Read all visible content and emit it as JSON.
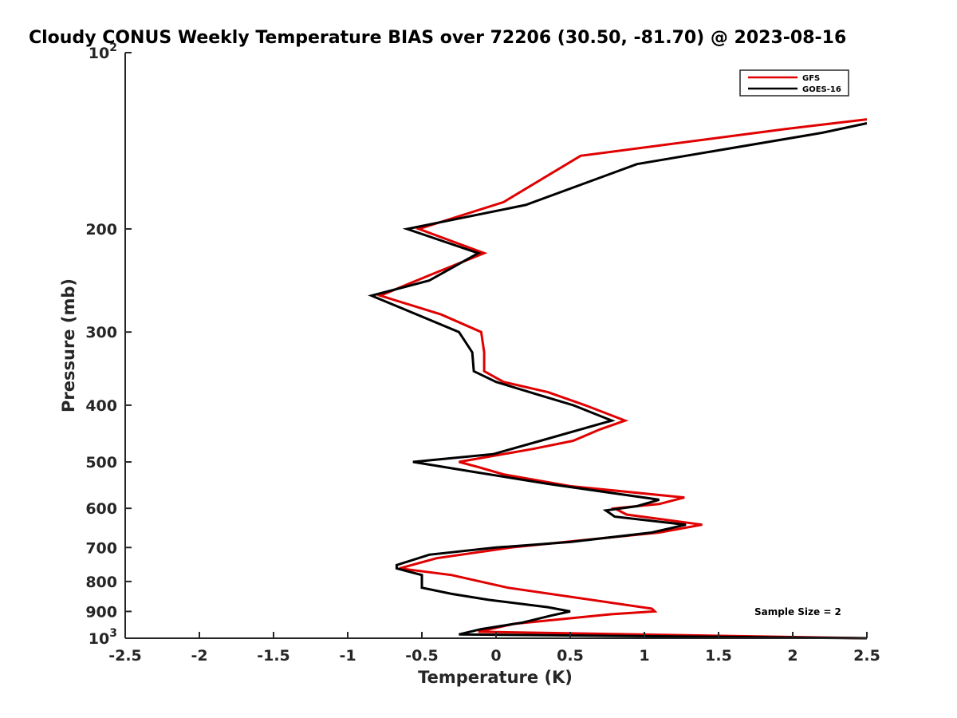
{
  "chart_data": {
    "type": "line",
    "title": "Cloudy CONUS Weekly Temperature BIAS over 72206 (30.50, -81.70) @ 2023-08-16",
    "xlabel": "Temperature (K)",
    "ylabel": "Pressure (mb)",
    "xlim": [
      -2.5,
      2.5
    ],
    "ylim": [
      100,
      1000
    ],
    "yscale": "log",
    "y_reversed": true,
    "x_ticks": [
      "-2.5",
      "-2",
      "-1.5",
      "-1",
      "-0.5",
      "0",
      "0.5",
      "1",
      "1.5",
      "2",
      "2.5"
    ],
    "x_tick_values": [
      -2.5,
      -2,
      -1.5,
      -1,
      -0.5,
      0,
      0.5,
      1,
      1.5,
      2,
      2.5
    ],
    "y_ticks": [
      {
        "value": 100,
        "base": "10",
        "exp": "2"
      },
      {
        "value": 200,
        "label": "200"
      },
      {
        "value": 300,
        "label": "300"
      },
      {
        "value": 400,
        "label": "400"
      },
      {
        "value": 500,
        "label": "500"
      },
      {
        "value": 600,
        "label": "600"
      },
      {
        "value": 700,
        "label": "700"
      },
      {
        "value": 800,
        "label": "800"
      },
      {
        "value": 900,
        "label": "900"
      },
      {
        "value": 1000,
        "base": "10",
        "exp": "3"
      }
    ],
    "legend_position": "top-right",
    "series": [
      {
        "name": "GFS",
        "color": "#e00000",
        "points": [
          {
            "t": 2.5,
            "p": 130
          },
          {
            "t": 1.95,
            "p": 135
          },
          {
            "t": 0.57,
            "p": 150
          },
          {
            "t": 0.05,
            "p": 180
          },
          {
            "t": -0.52,
            "p": 200
          },
          {
            "t": -0.08,
            "p": 220
          },
          {
            "t": -0.45,
            "p": 240
          },
          {
            "t": -0.78,
            "p": 260
          },
          {
            "t": -0.37,
            "p": 280
          },
          {
            "t": -0.1,
            "p": 300
          },
          {
            "t": -0.08,
            "p": 325
          },
          {
            "t": -0.08,
            "p": 350
          },
          {
            "t": 0.05,
            "p": 365
          },
          {
            "t": 0.35,
            "p": 380
          },
          {
            "t": 0.6,
            "p": 400
          },
          {
            "t": 0.87,
            "p": 425
          },
          {
            "t": 0.7,
            "p": 440
          },
          {
            "t": 0.52,
            "p": 460
          },
          {
            "t": 0.25,
            "p": 475
          },
          {
            "t": -0.25,
            "p": 500
          },
          {
            "t": -0.12,
            "p": 510
          },
          {
            "t": 0.05,
            "p": 525
          },
          {
            "t": 0.5,
            "p": 550
          },
          {
            "t": 1.27,
            "p": 575
          },
          {
            "t": 1.1,
            "p": 590
          },
          {
            "t": 0.8,
            "p": 600
          },
          {
            "t": 0.88,
            "p": 615
          },
          {
            "t": 1.39,
            "p": 640
          },
          {
            "t": 1.1,
            "p": 660
          },
          {
            "t": 0.1,
            "p": 700
          },
          {
            "t": -0.4,
            "p": 730
          },
          {
            "t": -0.65,
            "p": 760
          },
          {
            "t": -0.3,
            "p": 780
          },
          {
            "t": 0.08,
            "p": 820
          },
          {
            "t": 1.05,
            "p": 890
          },
          {
            "t": 1.07,
            "p": 900
          },
          {
            "t": 0.78,
            "p": 910
          },
          {
            "t": 0.12,
            "p": 945
          },
          {
            "t": -0.12,
            "p": 975
          },
          {
            "t": 2.5,
            "p": 1000
          }
        ]
      },
      {
        "name": "GOES-16",
        "color": "#000000",
        "points": [
          {
            "t": 2.5,
            "p": 132
          },
          {
            "t": 2.2,
            "p": 137
          },
          {
            "t": 0.95,
            "p": 155
          },
          {
            "t": 0.2,
            "p": 182
          },
          {
            "t": -0.6,
            "p": 200
          },
          {
            "t": -0.12,
            "p": 220
          },
          {
            "t": -0.45,
            "p": 245
          },
          {
            "t": -0.84,
            "p": 260
          },
          {
            "t": -0.25,
            "p": 300
          },
          {
            "t": -0.16,
            "p": 325
          },
          {
            "t": -0.15,
            "p": 350
          },
          {
            "t": 0.0,
            "p": 365
          },
          {
            "t": 0.3,
            "p": 385
          },
          {
            "t": 0.52,
            "p": 400
          },
          {
            "t": 0.78,
            "p": 425
          },
          {
            "t": 0.3,
            "p": 460
          },
          {
            "t": -0.02,
            "p": 485
          },
          {
            "t": -0.56,
            "p": 500
          },
          {
            "t": -0.15,
            "p": 520
          },
          {
            "t": 0.35,
            "p": 545
          },
          {
            "t": 1.1,
            "p": 580
          },
          {
            "t": 0.95,
            "p": 595
          },
          {
            "t": 0.74,
            "p": 605
          },
          {
            "t": 0.8,
            "p": 620
          },
          {
            "t": 1.28,
            "p": 640
          },
          {
            "t": 1.05,
            "p": 660
          },
          {
            "t": 0.5,
            "p": 685
          },
          {
            "t": 0.0,
            "p": 700
          },
          {
            "t": -0.45,
            "p": 720
          },
          {
            "t": -0.67,
            "p": 750
          },
          {
            "t": -0.67,
            "p": 760
          },
          {
            "t": -0.5,
            "p": 780
          },
          {
            "t": -0.5,
            "p": 820
          },
          {
            "t": -0.3,
            "p": 840
          },
          {
            "t": -0.05,
            "p": 860
          },
          {
            "t": 0.35,
            "p": 885
          },
          {
            "t": 0.5,
            "p": 900
          },
          {
            "t": 0.37,
            "p": 915
          },
          {
            "t": 0.18,
            "p": 940
          },
          {
            "t": -0.1,
            "p": 965
          },
          {
            "t": -0.25,
            "p": 985
          },
          {
            "t": 2.5,
            "p": 1000
          }
        ]
      }
    ],
    "annotation": "Sample Size = 2"
  }
}
